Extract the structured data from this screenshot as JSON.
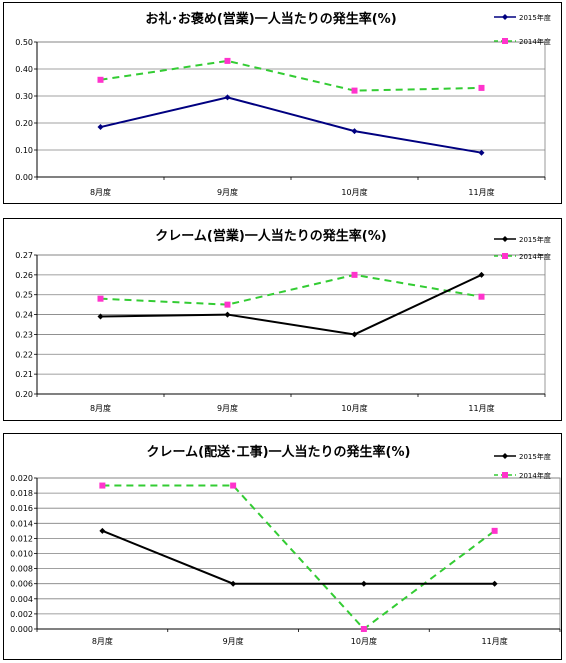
{
  "chart_data": [
    {
      "type": "line",
      "title": "お礼･お褒め(営業)一人当たりの発生率(%)",
      "categories": [
        "8月度",
        "9月度",
        "10月度",
        "11月度"
      ],
      "ylim": [
        0,
        0.5
      ],
      "yticks": [
        "0.00",
        "0.10",
        "0.20",
        "0.30",
        "0.40",
        "0.50"
      ],
      "grid": true,
      "legend_position": "top-right",
      "series": [
        {
          "name": "2015年度",
          "values": [
            0.185,
            0.295,
            0.17,
            0.09
          ],
          "color": "#000080",
          "dash": false
        },
        {
          "name": "2014年度",
          "values": [
            0.36,
            0.43,
            0.32,
            0.33
          ],
          "color": "#33cc33",
          "marker_color": "#ff33cc",
          "dash": true
        }
      ]
    },
    {
      "type": "line",
      "title": "クレーム(営業)一人当たりの発生率(%)",
      "categories": [
        "8月度",
        "9月度",
        "10月度",
        "11月度"
      ],
      "ylim": [
        0.2,
        0.27
      ],
      "yticks": [
        "0.20",
        "0.21",
        "0.22",
        "0.23",
        "0.24",
        "0.25",
        "0.26",
        "0.27"
      ],
      "grid": true,
      "legend_position": "top-right",
      "series": [
        {
          "name": "2015年度",
          "values": [
            0.239,
            0.24,
            0.23,
            0.26
          ],
          "color": "#000000",
          "dash": false
        },
        {
          "name": "2014年度",
          "values": [
            0.248,
            0.245,
            0.26,
            0.249
          ],
          "color": "#33cc33",
          "marker_color": "#ff33cc",
          "dash": true
        }
      ]
    },
    {
      "type": "line",
      "title": "クレーム(配送･工事)一人当たりの発生率(%)",
      "categories": [
        "8月度",
        "9月度",
        "10月度",
        "11月度"
      ],
      "ylim": [
        0,
        0.02
      ],
      "yticks": [
        "0.000",
        "0.002",
        "0.004",
        "0.006",
        "0.008",
        "0.010",
        "0.012",
        "0.014",
        "0.016",
        "0.018",
        "0.020"
      ],
      "grid": true,
      "legend_position": "top-right",
      "series": [
        {
          "name": "2015年度",
          "values": [
            0.013,
            0.006,
            0.006,
            0.006
          ],
          "color": "#000000",
          "dash": false
        },
        {
          "name": "2014年度",
          "values": [
            0.019,
            0.019,
            0.0,
            0.013
          ],
          "color": "#33cc33",
          "marker_color": "#ff33cc",
          "dash": true
        }
      ]
    }
  ]
}
